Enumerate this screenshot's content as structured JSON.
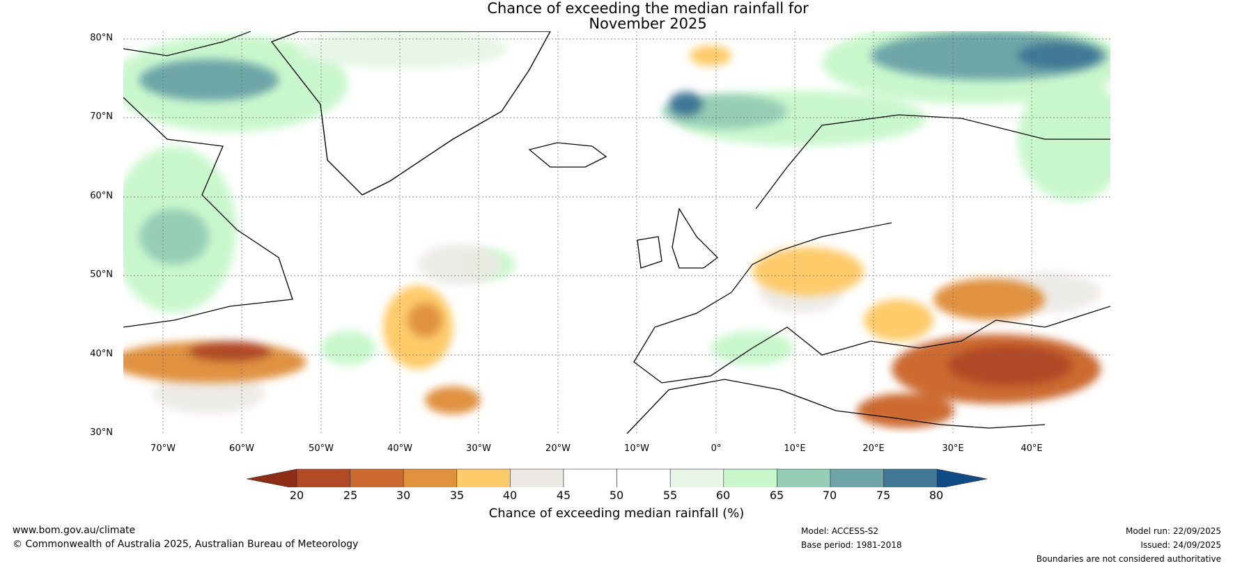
{
  "title": {
    "line1": "Chance of exceeding the median rainfall for",
    "line2": "November 2025"
  },
  "axes": {
    "lat_labels": [
      "80°N",
      "70°N",
      "60°N",
      "50°N",
      "40°N",
      "30°N"
    ],
    "lon_labels": [
      "70°W",
      "60°W",
      "50°W",
      "40°W",
      "30°W",
      "20°W",
      "10°W",
      "0°",
      "10°E",
      "20°E",
      "30°E",
      "40°E"
    ],
    "lat_range": [
      30,
      81
    ],
    "lon_range": [
      -75,
      50
    ]
  },
  "colorbar": {
    "label": "Chance of exceeding median rainfall (%)",
    "ticks": [
      "20",
      "25",
      "30",
      "35",
      "40",
      "45",
      "50",
      "55",
      "60",
      "65",
      "70",
      "75",
      "80"
    ],
    "colors": [
      "#8c2e16",
      "#b24a26",
      "#cc6a30",
      "#e0923f",
      "#fecb6b",
      "#ece9e5",
      "#ffffff",
      "#ffffff",
      "#e7f6e7",
      "#c7f7cb",
      "#97cdb6",
      "#6ea6a8",
      "#417895",
      "#0f4b85"
    ]
  },
  "footer": {
    "url": "www.bom.gov.au/climate",
    "copyright": "© Commonwealth of Australia 2025, Australian Bureau of Meteorology",
    "model": "Model: ACCESS-S2",
    "base_period": "Base period: 1981-2018",
    "model_run": "Model run: 22/09/2025",
    "issued": "Issued: 24/09/2025",
    "disclaimer": "Boundaries are not considered authoritative"
  }
}
